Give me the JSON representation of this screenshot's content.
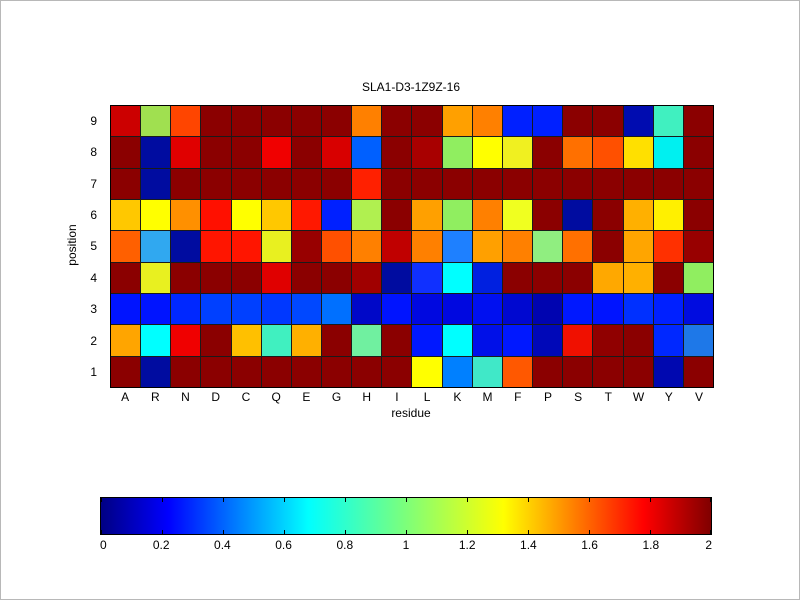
{
  "chart_data": {
    "type": "heatmap",
    "title": "SLA1-D3-1Z9Z-16",
    "xlabel": "residue",
    "ylabel": "position",
    "x_categories": [
      "A",
      "R",
      "N",
      "D",
      "C",
      "Q",
      "E",
      "G",
      "H",
      "I",
      "L",
      "K",
      "M",
      "F",
      "P",
      "S",
      "T",
      "W",
      "Y",
      "V"
    ],
    "y_categories": [
      "9",
      "8",
      "7",
      "6",
      "5",
      "4",
      "3",
      "2",
      "1"
    ],
    "values": [
      [
        1.8,
        1.05,
        1.6,
        1.95,
        1.95,
        1.95,
        1.95,
        1.95,
        1.45,
        1.95,
        1.95,
        1.4,
        1.45,
        0.2,
        0.2,
        1.95,
        1.95,
        0.08,
        0.7,
        1.95
      ],
      [
        1.9,
        0.07,
        1.75,
        1.95,
        1.95,
        1.72,
        1.95,
        1.78,
        0.35,
        1.95,
        1.85,
        0.95,
        1.2,
        1.18,
        1.95,
        1.48,
        1.55,
        1.25,
        0.62,
        1.95
      ],
      [
        1.95,
        0.07,
        1.95,
        1.95,
        1.95,
        1.95,
        1.95,
        1.95,
        1.68,
        1.95,
        1.95,
        1.95,
        1.95,
        1.95,
        1.95,
        1.95,
        1.95,
        1.95,
        1.95,
        1.95
      ],
      [
        1.3,
        1.2,
        1.42,
        1.7,
        1.2,
        1.3,
        1.7,
        0.22,
        1.02,
        1.95,
        1.4,
        0.95,
        1.45,
        1.15,
        1.95,
        0.07,
        1.95,
        1.35,
        1.2,
        1.95
      ],
      [
        1.5,
        0.45,
        0.07,
        1.7,
        1.7,
        1.12,
        1.88,
        1.55,
        1.45,
        1.8,
        1.45,
        0.38,
        1.4,
        1.45,
        0.95,
        1.48,
        1.95,
        1.38,
        1.65,
        1.88
      ],
      [
        1.95,
        1.12,
        1.95,
        1.95,
        1.95,
        1.75,
        1.95,
        1.95,
        1.85,
        0.07,
        0.22,
        0.6,
        0.18,
        1.95,
        1.95,
        1.95,
        1.36,
        1.35,
        1.95,
        0.95
      ],
      [
        0.2,
        0.2,
        0.25,
        0.28,
        0.28,
        0.27,
        0.3,
        0.35,
        0.1,
        0.2,
        0.15,
        0.15,
        0.18,
        0.13,
        0.08,
        0.22,
        0.2,
        0.27,
        0.23,
        0.15
      ],
      [
        1.38,
        0.6,
        1.75,
        1.95,
        1.32,
        0.72,
        1.36,
        1.95,
        0.82,
        1.95,
        0.22,
        0.6,
        0.18,
        0.2,
        0.08,
        1.72,
        1.9,
        1.95,
        0.25,
        0.42
      ],
      [
        1.95,
        0.07,
        1.95,
        1.95,
        1.95,
        1.95,
        1.95,
        1.95,
        1.95,
        1.95,
        1.2,
        0.4,
        0.7,
        1.52,
        1.95,
        1.95,
        1.95,
        1.95,
        0.07,
        1.95
      ]
    ],
    "cell_colors": [
      [
        "#CC0000",
        "#A0E050",
        "#FF4500",
        "#8B0000",
        "#8B0000",
        "#8B0000",
        "#8B0000",
        "#8B0000",
        "#FF8000",
        "#8B0000",
        "#8B0000",
        "#FFA000",
        "#FF8000",
        "#0020FF",
        "#0020FF",
        "#8B0000",
        "#8B0000",
        "#000CB0",
        "#40F0C0",
        "#8B0000"
      ],
      [
        "#8B0000",
        "#000CA0",
        "#E00000",
        "#8B0000",
        "#8B0000",
        "#F00000",
        "#8B0000",
        "#D80000",
        "#0060FF",
        "#8B0000",
        "#A80000",
        "#90EE60",
        "#FFFF00",
        "#F0F020",
        "#8B0000",
        "#FF7000",
        "#FF5000",
        "#FFE000",
        "#00F0F0",
        "#8B0000"
      ],
      [
        "#8B0000",
        "#000CA0",
        "#8B0000",
        "#8B0000",
        "#8B0000",
        "#8B0000",
        "#8B0000",
        "#8B0000",
        "#FF2000",
        "#8B0000",
        "#8B0000",
        "#8B0000",
        "#8B0000",
        "#8B0000",
        "#8B0000",
        "#8B0000",
        "#8B0000",
        "#8B0000",
        "#8B0000",
        "#8B0000"
      ],
      [
        "#FFC800",
        "#FFFF00",
        "#FF9000",
        "#FF1000",
        "#FFFF00",
        "#FFC800",
        "#FF1800",
        "#0020FF",
        "#B0F050",
        "#8B0000",
        "#FFA000",
        "#90EE60",
        "#FF8000",
        "#F0FF20",
        "#8B0000",
        "#000CA0",
        "#8B0000",
        "#FFB000",
        "#FFF000",
        "#8B0000"
      ],
      [
        "#FF6000",
        "#30A8F0",
        "#000CA0",
        "#FF1500",
        "#FF1500",
        "#E8F020",
        "#980000",
        "#FF5000",
        "#FF8000",
        "#C00000",
        "#FF8000",
        "#1E80FF",
        "#FFA000",
        "#FF8000",
        "#90EE80",
        "#FF7000",
        "#8B0000",
        "#FFA500",
        "#FF3000",
        "#980000"
      ],
      [
        "#8B0000",
        "#E8F020",
        "#8B0000",
        "#8B0000",
        "#8B0000",
        "#E00000",
        "#8B0000",
        "#8B0000",
        "#A00000",
        "#000CA0",
        "#1030FF",
        "#00FFFF",
        "#0020E0",
        "#8B0000",
        "#8B0000",
        "#8B0000",
        "#FFA800",
        "#FFB000",
        "#8B0000",
        "#90EE60"
      ],
      [
        "#0014FF",
        "#0014FF",
        "#0028FF",
        "#0040FF",
        "#0040FF",
        "#0038FF",
        "#0048FF",
        "#0070FF",
        "#0008C8",
        "#0014FF",
        "#0008E0",
        "#0008E0",
        "#0010F0",
        "#0008D0",
        "#0004B0",
        "#0018FF",
        "#0014FF",
        "#0030FF",
        "#0020FF",
        "#000CE0"
      ],
      [
        "#FFA500",
        "#00FFFF",
        "#F00000",
        "#8B0000",
        "#FFC000",
        "#40F0C0",
        "#FFB000",
        "#8B0000",
        "#70F0A0",
        "#8B0000",
        "#0018FF",
        "#00FFFF",
        "#0010E8",
        "#0018FF",
        "#0008B8",
        "#F01000",
        "#900000",
        "#8B0000",
        "#0028FF",
        "#1E78E8"
      ],
      [
        "#8B0000",
        "#000CA0",
        "#8B0000",
        "#8B0000",
        "#8B0000",
        "#8B0000",
        "#8B0000",
        "#8B0000",
        "#8B0000",
        "#8B0000",
        "#FFFF00",
        "#0080FF",
        "#40E8C8",
        "#FF5800",
        "#8B0000",
        "#8B0000",
        "#8B0000",
        "#8B0000",
        "#0008B0",
        "#8B0000"
      ]
    ],
    "grid": true,
    "legend_position": "none",
    "colorbar": {
      "orientation": "horizontal",
      "min": 0,
      "max": 2,
      "tick_labels": [
        "0",
        "0.2",
        "0.4",
        "0.6",
        "0.8",
        "1",
        "1.2",
        "1.4",
        "1.6",
        "1.8",
        "2"
      ],
      "colormap": "jet",
      "gradient_stops": [
        "#000083 0%",
        "#0000FF 11%",
        "#00FFFF 34%",
        "#7DFF7A 50%",
        "#FFFF00 66%",
        "#FF0000 89%",
        "#800000 100%"
      ]
    }
  }
}
